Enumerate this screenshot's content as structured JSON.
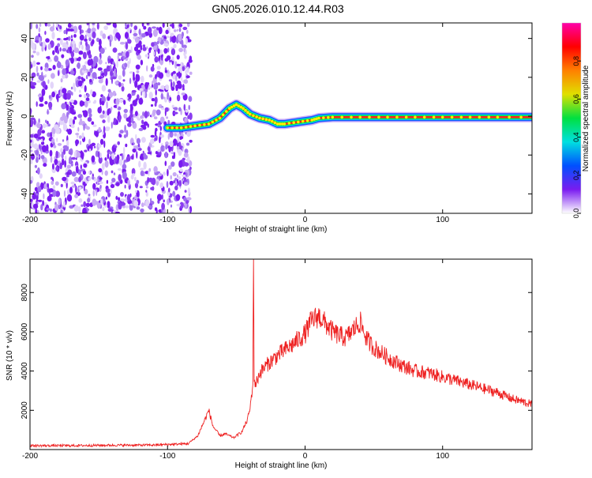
{
  "title": "GN05.2026.010.12.44.R03",
  "chart_data": [
    {
      "type": "heatmap",
      "xlabel": "Height of straight line (km)",
      "ylabel": "Frequency (Hz)",
      "xlim": [
        -200,
        165
      ],
      "ylim": [
        -50,
        48
      ],
      "x_ticks": [
        -200,
        -100,
        0,
        100
      ],
      "y_ticks": [
        -40,
        -20,
        0,
        20,
        40
      ],
      "noise_region_x": [
        -200,
        -83
      ],
      "signal_track": {
        "x": [
          -100,
          -90,
          -80,
          -70,
          -62,
          -55,
          -50,
          -45,
          -40,
          -33,
          -26,
          -20,
          -15,
          -5,
          5,
          10,
          20,
          40,
          60,
          80,
          100,
          120,
          140,
          165
        ],
        "y": [
          -6,
          -6,
          -5,
          -4,
          -1,
          4,
          6,
          4,
          1,
          -1,
          -2,
          -4,
          -4,
          -3,
          -2,
          -1,
          -0.5,
          -0.5,
          -0.5,
          -0.5,
          -0.5,
          -0.5,
          -0.5,
          -0.5
        ]
      },
      "colorbar": {
        "label": "Normalized spectral amplitude",
        "range": [
          0,
          1
        ],
        "ticks": [
          "0.0",
          "0.2",
          "0.4",
          "0.6",
          "0.8"
        ],
        "colormap": [
          "#ffffff",
          "#7a1cf0",
          "#0050ff",
          "#00e0e0",
          "#00e040",
          "#e0e000",
          "#ff8000",
          "#ff0000",
          "#ff00aa"
        ]
      }
    },
    {
      "type": "line",
      "xlabel": "Height of straight line (km)",
      "ylabel": "SNR (10 * v/v)",
      "xlim": [
        -200,
        165
      ],
      "ylim": [
        0,
        9700
      ],
      "x_ticks": [
        -200,
        -100,
        0,
        100
      ],
      "y_ticks": [
        2000,
        4000,
        6000,
        8000
      ],
      "color": "#ee2020",
      "series": [
        {
          "x": [
            -200,
            -170,
            -140,
            -110,
            -85,
            -78,
            -73,
            -70,
            -67,
            -62,
            -58,
            -52,
            -46,
            -42,
            -40,
            -38,
            -37.5,
            -37,
            -36,
            -33,
            -28,
            -20,
            -10,
            0,
            5,
            10,
            15,
            20,
            25,
            30,
            35,
            40,
            45,
            50,
            60,
            70,
            80,
            90,
            100,
            110,
            120,
            130,
            140,
            150,
            165
          ],
          "y": [
            200,
            200,
            220,
            230,
            300,
            700,
            1500,
            2000,
            1200,
            700,
            800,
            600,
            900,
            1500,
            2100,
            3300,
            9700,
            3600,
            3300,
            3900,
            4300,
            4800,
            5300,
            5900,
            6600,
            6800,
            6400,
            6000,
            5800,
            5700,
            6100,
            6500,
            5600,
            5200,
            4700,
            4300,
            4000,
            3900,
            3700,
            3500,
            3300,
            3100,
            2900,
            2600,
            2300
          ]
        }
      ]
    }
  ]
}
